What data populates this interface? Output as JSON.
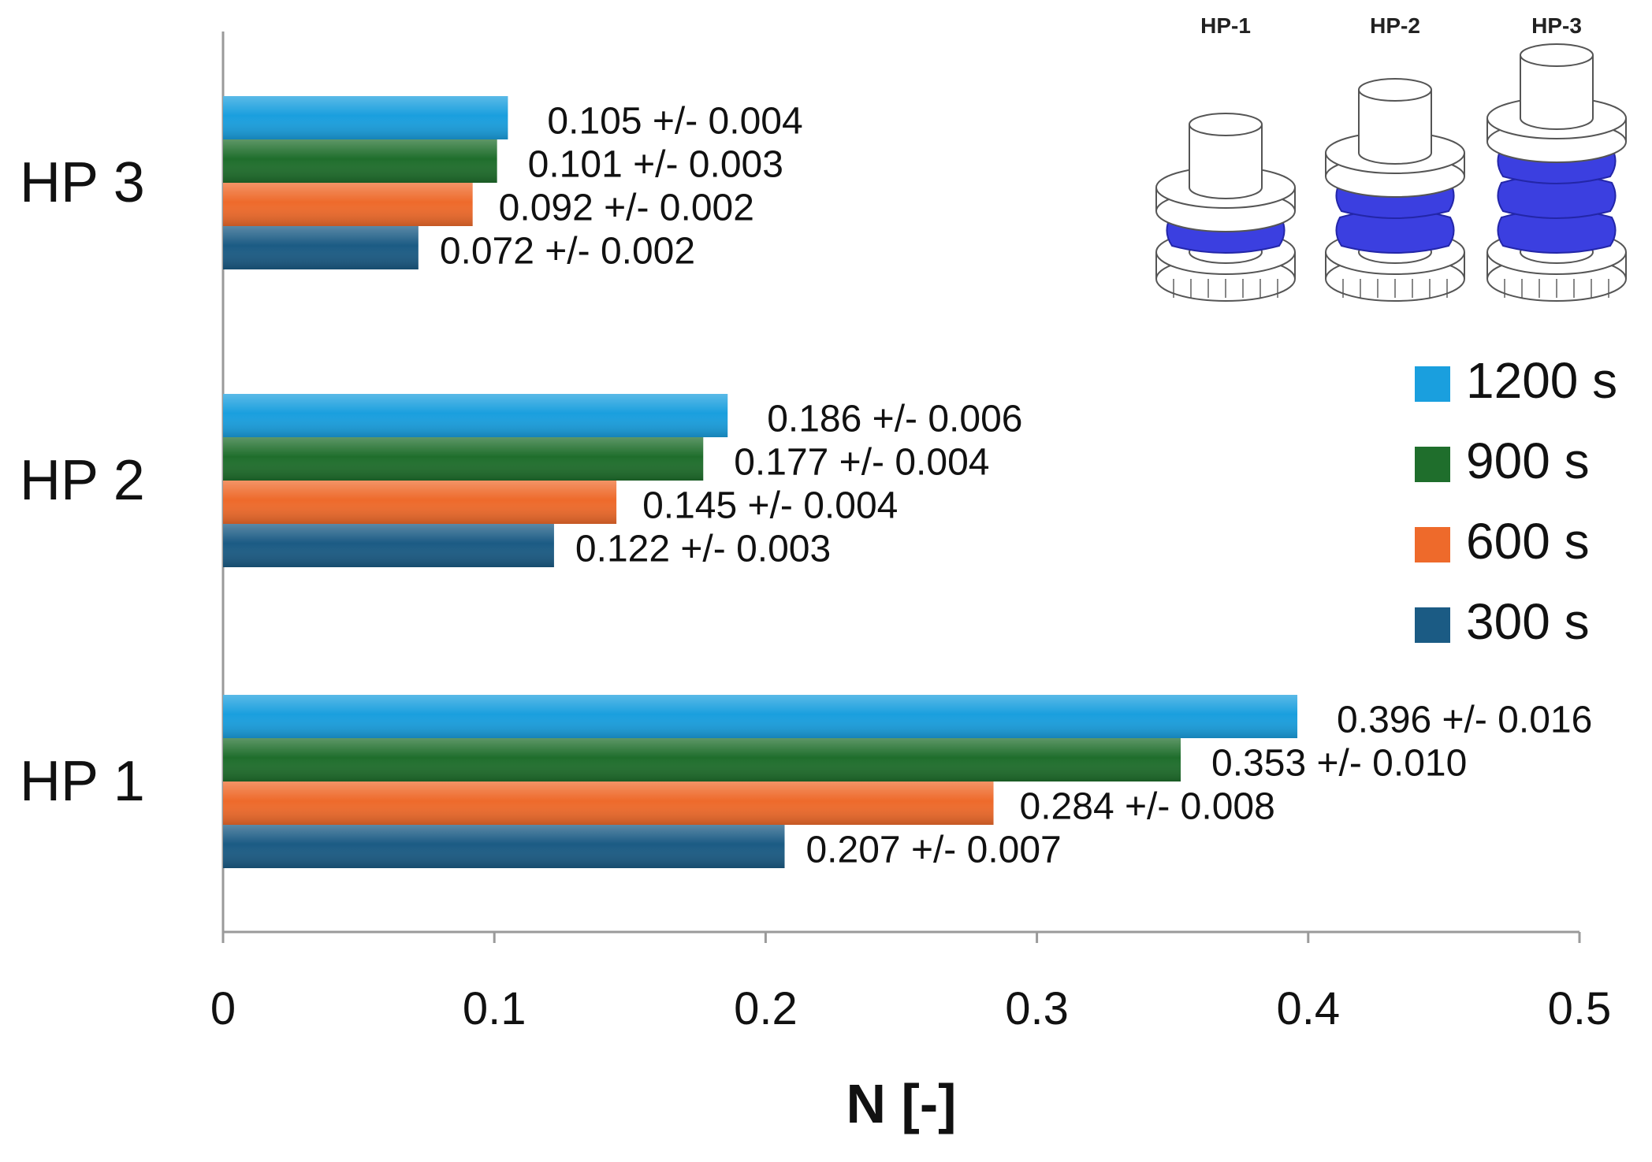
{
  "chart_data": {
    "type": "bar",
    "orientation": "horizontal",
    "categories": [
      "HP 3",
      "HP 2",
      "HP 1"
    ],
    "series": [
      {
        "name": "1200 s",
        "values": [
          0.105,
          0.186,
          0.396
        ],
        "labels": [
          "0.105 +/- 0.004",
          "0.186 +/- 0.006",
          "0.396 +/- 0.016"
        ],
        "color": "#1a9fde"
      },
      {
        "name": "900 s",
        "values": [
          0.101,
          0.177,
          0.353
        ],
        "labels": [
          "0.101 +/- 0.003",
          "0.177 +/- 0.004",
          "0.353 +/- 0.010"
        ],
        "color": "#1f6e2c"
      },
      {
        "name": "600 s",
        "values": [
          0.092,
          0.145,
          0.284
        ],
        "labels": [
          "0.092 +/- 0.002",
          "0.145 +/- 0.004",
          "0.284 +/- 0.008"
        ],
        "color": "#ee6a2b"
      },
      {
        "name": "300 s",
        "values": [
          0.072,
          0.122,
          0.207
        ],
        "labels": [
          "0.072 +/- 0.002",
          "0.122 +/- 0.003",
          "0.207 +/- 0.007"
        ],
        "color": "#1b5b84"
      }
    ],
    "xlabel": "N [-]",
    "ylabel": "",
    "xlim": [
      0,
      0.5
    ],
    "xticks": [
      "0",
      "0.1",
      "0.2",
      "0.3",
      "0.4",
      "0.5"
    ],
    "grid": false,
    "legend": "right"
  },
  "inset": {
    "labels": [
      "HP-1",
      "HP-2",
      "HP-3"
    ],
    "layers": [
      1,
      2,
      3
    ],
    "color": "#3b3fe0"
  }
}
